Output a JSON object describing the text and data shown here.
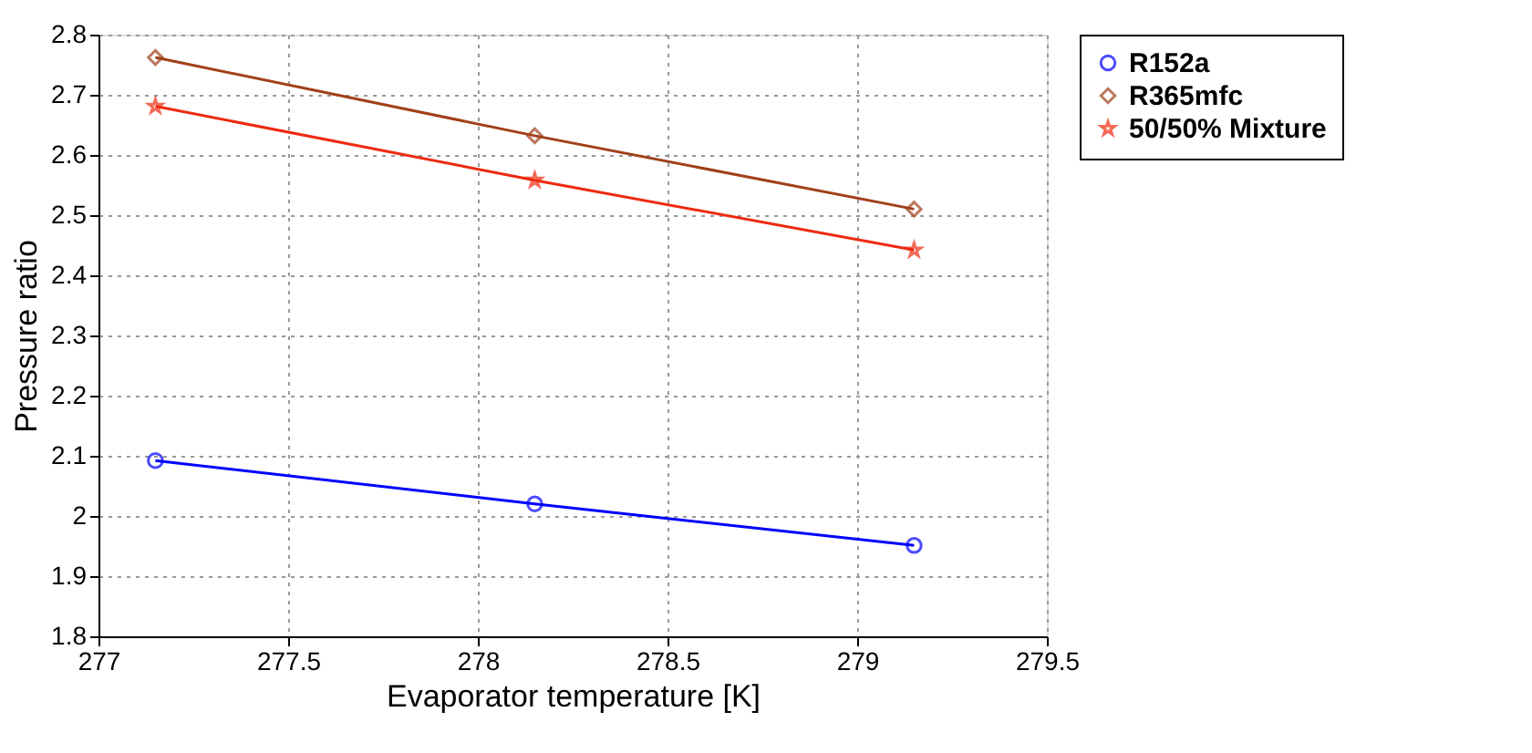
{
  "chart_data": {
    "type": "line",
    "xlabel": "Evaporator temperature [K]",
    "ylabel": "Pressure ratio",
    "x": [
      277.15,
      278.15,
      279.15
    ],
    "series": [
      {
        "name": "R152a",
        "color": "#0000ff",
        "marker": "circle",
        "values": [
          2.092,
          2.02,
          1.951
        ]
      },
      {
        "name": "R365mfc",
        "color": "#a0401a",
        "marker": "diamond",
        "values": [
          2.762,
          2.632,
          2.51
        ]
      },
      {
        "name": "50/50% Mixture",
        "color": "#ee2a10",
        "marker": "star",
        "values": [
          2.681,
          2.558,
          2.442
        ]
      }
    ],
    "xlim": [
      277,
      279.5
    ],
    "xticks": [
      277,
      277.5,
      278,
      278.5,
      279,
      279.5
    ],
    "ylim": [
      1.8,
      2.8
    ],
    "yticks": [
      1.8,
      1.9,
      2,
      2.1,
      2.2,
      2.3,
      2.4,
      2.5,
      2.6,
      2.7,
      2.8
    ],
    "grid": true,
    "legend": "top right",
    "line_style": "solid"
  }
}
